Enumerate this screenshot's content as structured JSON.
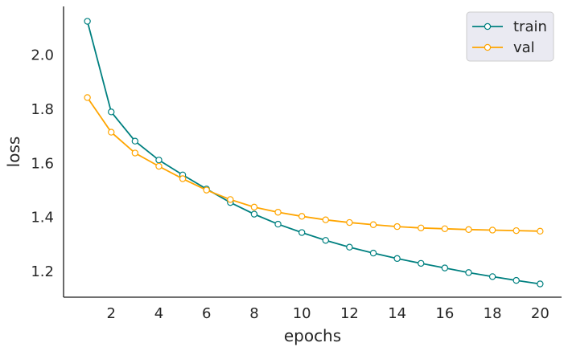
{
  "chart_data": {
    "type": "line",
    "xlabel": "epochs",
    "ylabel": "loss",
    "xlim": [
      0,
      20.9
    ],
    "ylim": [
      1.105,
      2.18
    ],
    "xticks": [
      2,
      4,
      6,
      8,
      10,
      12,
      14,
      16,
      18,
      20
    ],
    "yticks": [
      1.2,
      1.4,
      1.6,
      1.8,
      2.0
    ],
    "xtick_labels": [
      "2",
      "4",
      "6",
      "8",
      "10",
      "12",
      "14",
      "16",
      "18",
      "20"
    ],
    "ytick_labels": [
      "1.2",
      "1.4",
      "1.6",
      "1.8",
      "2.0"
    ],
    "grid": false,
    "legend_position": "top-right",
    "x": [
      1,
      2,
      3,
      4,
      5,
      6,
      7,
      8,
      9,
      10,
      11,
      12,
      13,
      14,
      15,
      16,
      17,
      18,
      19,
      20
    ],
    "series": [
      {
        "name": "train",
        "color": "#008080",
        "values": [
          2.125,
          1.79,
          1.682,
          1.612,
          1.557,
          1.505,
          1.455,
          1.412,
          1.375,
          1.344,
          1.315,
          1.29,
          1.268,
          1.248,
          1.23,
          1.213,
          1.196,
          1.181,
          1.167,
          1.154
        ]
      },
      {
        "name": "val",
        "color": "#ffa500",
        "values": [
          1.843,
          1.715,
          1.638,
          1.589,
          1.543,
          1.501,
          1.466,
          1.438,
          1.419,
          1.404,
          1.391,
          1.381,
          1.373,
          1.366,
          1.361,
          1.358,
          1.355,
          1.353,
          1.351,
          1.349
        ]
      }
    ]
  }
}
